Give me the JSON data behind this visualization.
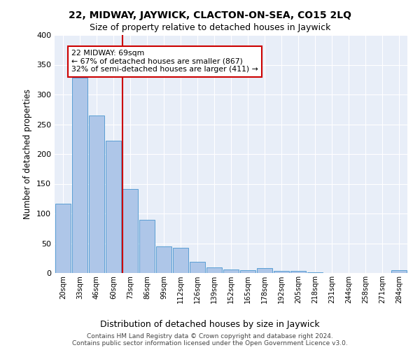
{
  "title": "22, MIDWAY, JAYWICK, CLACTON-ON-SEA, CO15 2LQ",
  "subtitle": "Size of property relative to detached houses in Jaywick",
  "xlabel": "Distribution of detached houses by size in Jaywick",
  "ylabel": "Number of detached properties",
  "bar_labels": [
    "20sqm",
    "33sqm",
    "46sqm",
    "60sqm",
    "73sqm",
    "86sqm",
    "99sqm",
    "112sqm",
    "126sqm",
    "139sqm",
    "152sqm",
    "165sqm",
    "178sqm",
    "192sqm",
    "205sqm",
    "218sqm",
    "231sqm",
    "244sqm",
    "258sqm",
    "271sqm",
    "284sqm"
  ],
  "bar_values": [
    116,
    328,
    265,
    222,
    141,
    89,
    45,
    42,
    19,
    10,
    6,
    5,
    8,
    3,
    4,
    1,
    0,
    0,
    0,
    0,
    5
  ],
  "bar_color": "#aec6e8",
  "bar_edge_color": "#5a9fd4",
  "vline_x_index": 4,
  "vline_color": "#cc0000",
  "annotation_text": "22 MIDWAY: 69sqm\n← 67% of detached houses are smaller (867)\n32% of semi-detached houses are larger (411) →",
  "annotation_box_color": "#ffffff",
  "annotation_border_color": "#cc0000",
  "ylim": [
    0,
    400
  ],
  "yticks": [
    0,
    50,
    100,
    150,
    200,
    250,
    300,
    350,
    400
  ],
  "background_color": "#e8eef8",
  "footer_line1": "Contains HM Land Registry data © Crown copyright and database right 2024.",
  "footer_line2": "Contains public sector information licensed under the Open Government Licence v3.0."
}
